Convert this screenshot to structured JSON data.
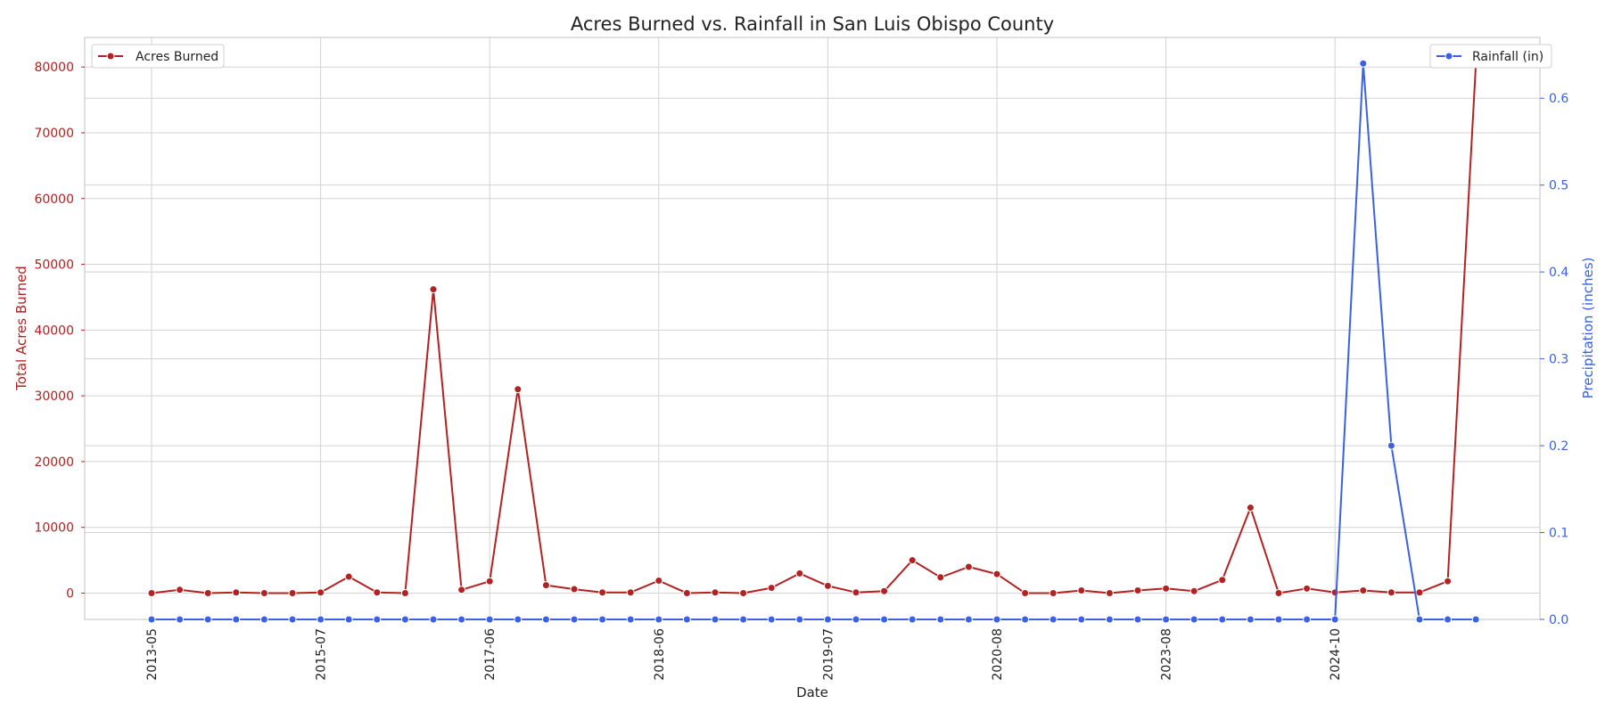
{
  "chart_data": {
    "type": "line",
    "title": "Acres Burned vs. Rainfall in San Luis Obispo County",
    "xlabel": "Date",
    "x_ticks": [
      "2013-05",
      "2015-07",
      "2017-06",
      "2018-06",
      "2019-07",
      "2020-08",
      "2023-08",
      "2024-10"
    ],
    "ylabel_left": "Total Acres Burned",
    "ylabel_right": "Precipitation (inches)",
    "ylim_left": [
      -4000,
      84500
    ],
    "yticks_left": [
      0,
      10000,
      20000,
      30000,
      40000,
      50000,
      60000,
      70000,
      80000
    ],
    "ylim_right": [
      0,
      0.67
    ],
    "yticks_right": [
      0.0,
      0.1,
      0.2,
      0.3,
      0.4,
      0.5,
      0.6
    ],
    "grid": true,
    "series": [
      {
        "name": "Acres Burned",
        "axis": "left",
        "color": "#b22222",
        "legend_position": "top-left",
        "values": [
          0,
          500,
          0,
          100,
          0,
          0,
          100,
          2500,
          100,
          0,
          46200,
          500,
          1800,
          31000,
          1200,
          600,
          100,
          100,
          1900,
          0,
          100,
          0,
          800,
          3000,
          1100,
          100,
          300,
          5000,
          2400,
          4000,
          2900,
          0,
          0,
          400,
          0,
          400,
          700,
          300,
          2000,
          13000,
          0,
          700,
          100,
          400,
          100,
          100,
          1800,
          80500
        ]
      },
      {
        "name": "Rainfall (in)",
        "axis": "right",
        "color": "#3a62e0",
        "legend_position": "top-right",
        "values": [
          0,
          0,
          0,
          0,
          0,
          0,
          0,
          0,
          0,
          0,
          0,
          0,
          0,
          0,
          0,
          0,
          0,
          0,
          0,
          0,
          0,
          0,
          0,
          0,
          0,
          0,
          0,
          0,
          0,
          0,
          0,
          0,
          0,
          0,
          0,
          0,
          0,
          0,
          0,
          0,
          0,
          0,
          0,
          0.64,
          0.2,
          0,
          0,
          0
        ]
      }
    ]
  }
}
